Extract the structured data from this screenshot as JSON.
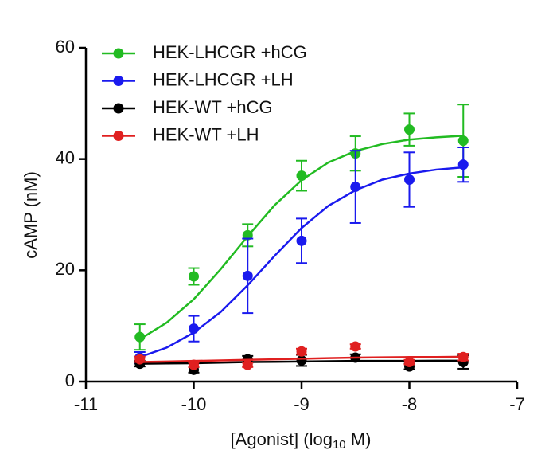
{
  "chart_data": {
    "type": "scatter",
    "ylabel": "cAMP (nM)",
    "xlabel": {
      "text": "[Agonist] (log",
      "sub": "10",
      "after": " M)"
    },
    "xlim": [
      -11,
      -7
    ],
    "xticks": [
      -11,
      -10,
      -9,
      -8,
      -7
    ],
    "ylim": [
      0,
      60
    ],
    "yticks": [
      0,
      20,
      40,
      60
    ],
    "x": [
      -10.5,
      -10,
      -9.5,
      -9,
      -8.5,
      -8,
      -7.5
    ],
    "fit_x": [
      -10.5,
      -10.25,
      -10,
      -9.75,
      -9.5,
      -9.25,
      -9,
      -8.75,
      -8.5,
      -8.25,
      -8,
      -7.75,
      -7.5
    ],
    "legend": "upper left",
    "series": [
      {
        "name": "HEK-LHCGR +hCG",
        "color": "#22bb22",
        "values": [
          8,
          18.9,
          26.3,
          37,
          41,
          45.3,
          43.3
        ],
        "errors": [
          2.3,
          1.5,
          2,
          2.7,
          3.1,
          2.9,
          6.5
        ],
        "fit": [
          7.6,
          10.6,
          14.8,
          20.2,
          26.1,
          31.7,
          36.2,
          39.4,
          41.45,
          42.7,
          43.5,
          43.9,
          44.2
        ]
      },
      {
        "name": "HEK-LHCGR +LH",
        "color": "#1a1aee",
        "values": [
          4.3,
          9.5,
          19,
          25.3,
          35,
          36.3,
          39
        ],
        "errors": [
          1,
          2.3,
          6.7,
          4,
          6.5,
          4.9,
          3.1
        ],
        "fit": [
          4.4,
          6.1,
          8.8,
          12.5,
          17.3,
          22.6,
          27.6,
          31.6,
          34.4,
          36.3,
          37.4,
          38.1,
          38.5
        ]
      },
      {
        "name": "HEK-WT +hCG",
        "color": "#000000",
        "values": [
          3.2,
          2.1,
          4,
          3.8,
          4.3,
          2.7,
          3.5
        ],
        "errors": [
          0.5,
          0.5,
          0.6,
          1,
          0.6,
          0.5,
          1.2
        ],
        "fit": [
          3.2,
          3.25,
          3.3,
          3.4,
          3.5,
          3.55,
          3.6,
          3.65,
          3.7,
          3.7,
          3.7,
          3.75,
          3.75
        ]
      },
      {
        "name": "HEK-WT +LH",
        "color": "#e02020",
        "values": [
          4,
          3,
          3,
          5.4,
          6.3,
          3.5,
          4.4
        ],
        "errors": [
          0.5,
          0.4,
          0.4,
          0.5,
          0.4,
          0.4,
          0.6
        ],
        "fit": [
          3.5,
          3.6,
          3.7,
          3.8,
          3.9,
          4.0,
          4.1,
          4.2,
          4.3,
          4.35,
          4.4,
          4.4,
          4.45
        ]
      }
    ]
  }
}
